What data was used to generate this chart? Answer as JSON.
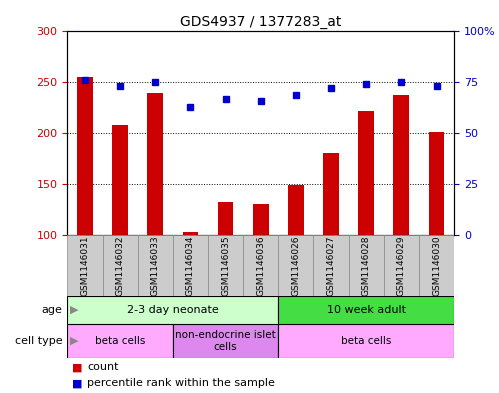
{
  "title": "GDS4937 / 1377283_at",
  "samples": [
    "GSM1146031",
    "GSM1146032",
    "GSM1146033",
    "GSM1146034",
    "GSM1146035",
    "GSM1146036",
    "GSM1146026",
    "GSM1146027",
    "GSM1146028",
    "GSM1146029",
    "GSM1146030"
  ],
  "counts": [
    255,
    208,
    240,
    103,
    132,
    130,
    149,
    181,
    222,
    238,
    201
  ],
  "percentiles": [
    76,
    73,
    75,
    63,
    67,
    66,
    69,
    72,
    74,
    75,
    73
  ],
  "ylim_left": [
    100,
    300
  ],
  "ylim_right": [
    0,
    100
  ],
  "yticks_left": [
    100,
    150,
    200,
    250,
    300
  ],
  "yticks_right": [
    0,
    25,
    50,
    75,
    100
  ],
  "ytick_labels_right": [
    "0",
    "25",
    "50",
    "75",
    "100%"
  ],
  "bar_color": "#cc0000",
  "dot_color": "#0000cc",
  "age_groups": [
    {
      "label": "2-3 day neonate",
      "start": 0,
      "end": 6,
      "color": "#ccffcc"
    },
    {
      "label": "10 week adult",
      "start": 6,
      "end": 11,
      "color": "#44dd44"
    }
  ],
  "cell_type_groups": [
    {
      "label": "beta cells",
      "start": 0,
      "end": 3,
      "color": "#ffaaff"
    },
    {
      "label": "non-endocrine islet\ncells",
      "start": 3,
      "end": 6,
      "color": "#dd88ee"
    },
    {
      "label": "beta cells",
      "start": 6,
      "end": 11,
      "color": "#ffaaff"
    }
  ],
  "sample_box_color": "#cccccc",
  "sample_box_edge_color": "#888888",
  "background_color": "#ffffff",
  "plot_bg_color": "#ffffff",
  "tick_label_color_left": "#cc0000",
  "tick_label_color_right": "#0000cc",
  "legend_bar_color": "#cc0000",
  "legend_dot_color": "#0000cc"
}
